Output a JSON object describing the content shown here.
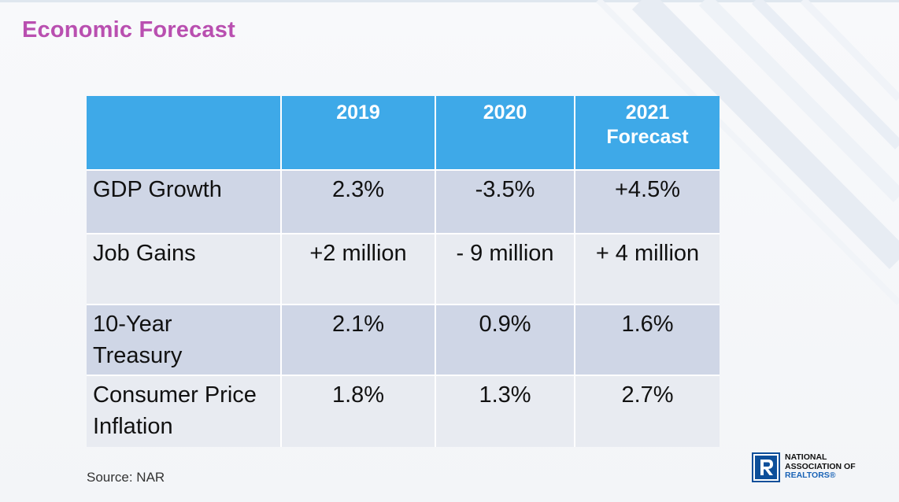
{
  "slide": {
    "title": "Economic Forecast",
    "source": "Source: NAR"
  },
  "table": {
    "header": {
      "corner": "",
      "columns": [
        [
          "2019"
        ],
        [
          "2020"
        ],
        [
          "2021",
          "Forecast"
        ]
      ]
    },
    "rows": [
      {
        "label_lines": [
          "GDP Growth"
        ],
        "values": [
          "2.3%",
          "-3.5%",
          "+4.5%"
        ]
      },
      {
        "label_lines": [
          "Job Gains"
        ],
        "values": [
          "+2 million",
          "- 9 million",
          "+ 4 million"
        ]
      },
      {
        "label_lines": [
          "10-Year",
          "Treasury"
        ],
        "values": [
          "2.1%",
          "0.9%",
          "1.6%"
        ]
      },
      {
        "label_lines": [
          "Consumer Price",
          "Inflation"
        ],
        "values": [
          "1.8%",
          "1.3%",
          "2.7%"
        ]
      }
    ]
  },
  "logo": {
    "icon": "realtor-r-icon",
    "lines": [
      "NATIONAL",
      "ASSOCIATION OF",
      "REALTORS®"
    ]
  },
  "colors": {
    "title": "#b94fb0",
    "header_fill": "#3ea9e8",
    "row_dark": "#cfd6e6",
    "row_light": "#e8ebf1",
    "logo_blue": "#0d4f9a"
  }
}
